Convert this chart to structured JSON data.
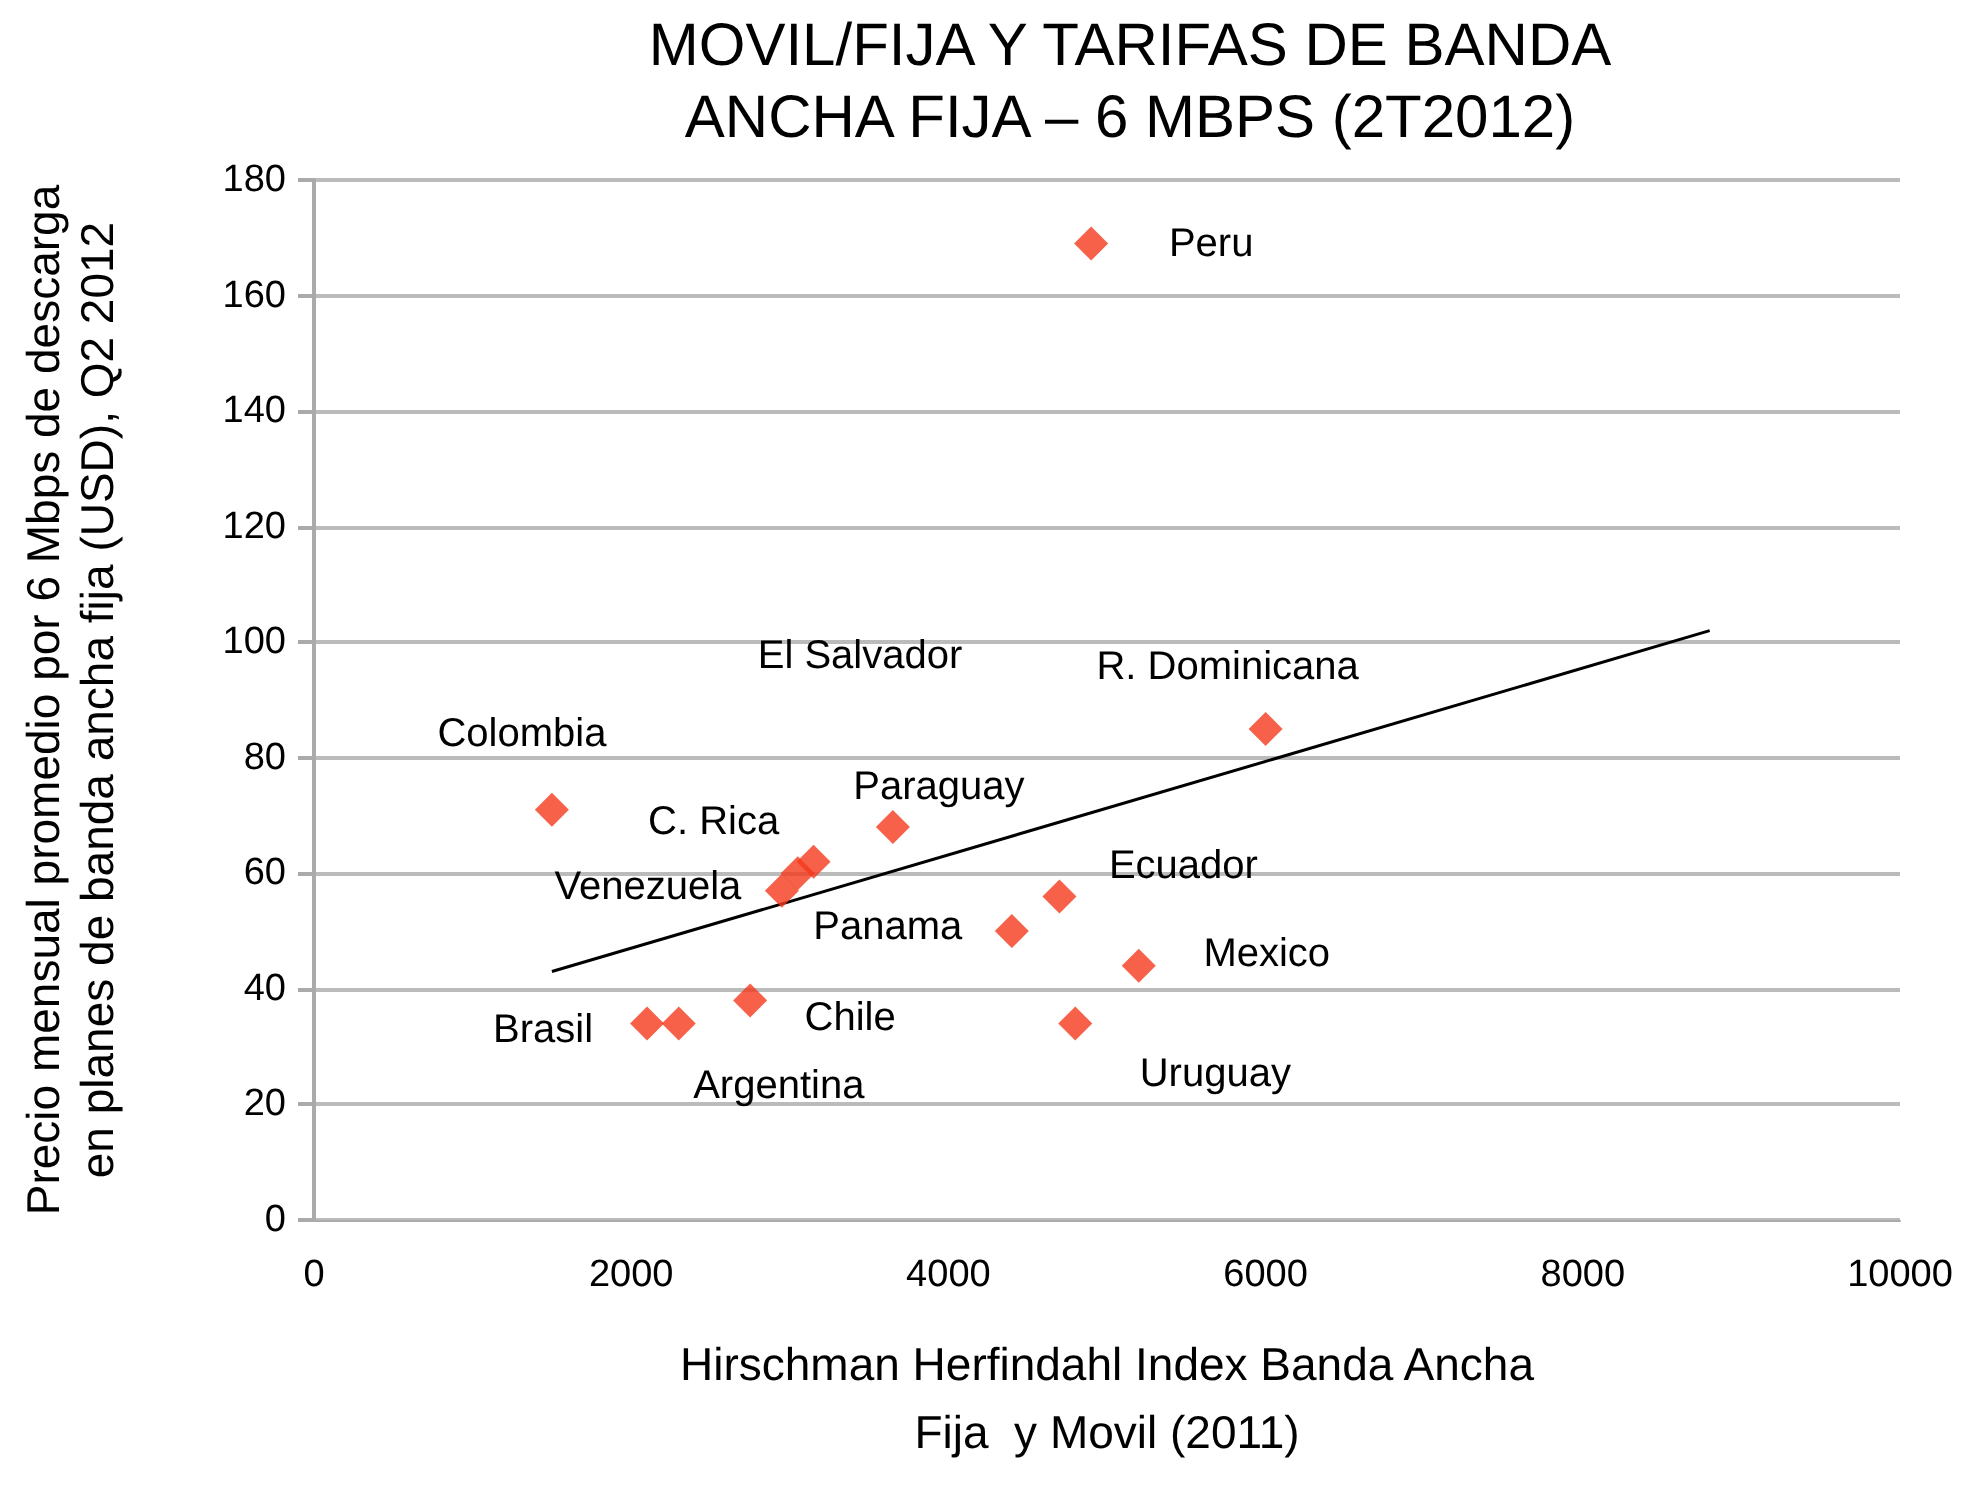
{
  "chart_data": {
    "type": "scatter",
    "title": "MOVIL/FIJA Y TARIFAS DE BANDA\nANCHA FIJA – 6 MBPS (2T2012)",
    "xlabel": "Hirschman Herfindahl Index Banda Ancha\nFija  y Movil (2011)",
    "ylabel": "Precio mensual promedio por 6 Mbps de descarga\nen planes de banda ancha fija (USD), Q2 2012",
    "xlim": [
      0,
      10000
    ],
    "xticks": [
      0,
      2000,
      4000,
      6000,
      8000,
      10000
    ],
    "ylim": [
      0,
      180
    ],
    "yticks": [
      0,
      20,
      40,
      60,
      80,
      100,
      120,
      140,
      160,
      180
    ],
    "grid": "y",
    "series": [
      {
        "marker": "diamond",
        "color": "#f5391c",
        "x": [
          4900,
          6000,
          1500,
          3650,
          3150,
          3050,
          2950,
          4700,
          4400,
          5200,
          2750,
          2100,
          2300,
          4800
        ],
        "values": [
          169,
          85,
          71,
          68,
          62,
          60,
          57,
          56,
          50,
          44,
          38,
          34,
          34,
          34
        ]
      },
      {
        "type": "line",
        "marker": "none",
        "color": "#000000",
        "x": [
          1500,
          8800
        ],
        "values": [
          43,
          102
        ]
      }
    ],
    "annotations": [
      {
        "text": "Peru",
        "x": 4900,
        "y": 169
      },
      {
        "text": "R. Dominicana",
        "x": 6000,
        "y": 85
      },
      {
        "text": "Colombia",
        "x": 1500,
        "y": 71
      },
      {
        "text": "Paraguay",
        "x": 3650,
        "y": 68
      },
      {
        "text": "C. Rica",
        "x": 3150,
        "y": 62
      },
      "El Salvador",
      {
        "text": "Venezuela",
        "x": 2950,
        "y": 57
      },
      {
        "text": "Ecuador",
        "x": 4700,
        "y": 56
      },
      {
        "text": "Panama",
        "x": 4400,
        "y": 50
      },
      {
        "text": "Mexico",
        "x": 5200,
        "y": 44
      },
      {
        "text": "Chile",
        "x": 2750,
        "y": 38
      },
      {
        "text": "Brasil",
        "x": 2100,
        "y": 34
      },
      {
        "text": "Argentina",
        "x": 2300,
        "y": 34
      },
      {
        "text": "Uruguay",
        "x": 4800,
        "y": 34
      }
    ]
  }
}
